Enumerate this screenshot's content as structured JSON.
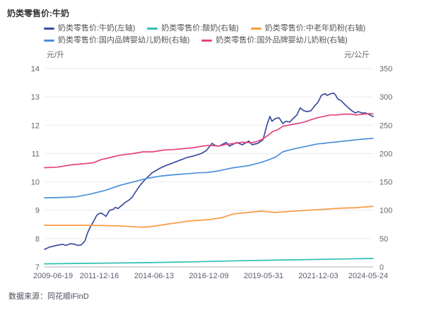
{
  "title": "奶类零售价:牛奶",
  "source": "数据来源：同花顺iFinD",
  "axis_units": {
    "left": "元/升",
    "right": "元/公斤"
  },
  "chart_data": {
    "type": "line",
    "title": "奶类零售价:牛奶",
    "grid": true,
    "legend_position": "top",
    "x_tick_labels": [
      "2009-06-19",
      "2011-12-16",
      "2014-06-13",
      "2016-12-09",
      "2019-05-31",
      "2021-12-03",
      "2024-05-24"
    ],
    "y_left": {
      "label": "元/升",
      "min": 7,
      "max": 14,
      "ticks": [
        7,
        8,
        9,
        10,
        11,
        12,
        13,
        14
      ]
    },
    "y_right": {
      "label": "元/公斤",
      "min": 0,
      "max": 350,
      "ticks": [
        0,
        50,
        100,
        150,
        200,
        250,
        300,
        350
      ]
    },
    "series": [
      {
        "id": "milk",
        "name": "奶类零售价:牛奶(左轴)",
        "axis": "left",
        "color": "#3C4C9D",
        "points": [
          [
            0.0,
            7.62
          ],
          [
            0.015,
            7.7
          ],
          [
            0.037,
            7.76
          ],
          [
            0.054,
            7.8
          ],
          [
            0.065,
            7.76
          ],
          [
            0.08,
            7.82
          ],
          [
            0.092,
            7.8
          ],
          [
            0.101,
            7.76
          ],
          [
            0.112,
            7.78
          ],
          [
            0.123,
            7.92
          ],
          [
            0.131,
            8.2
          ],
          [
            0.138,
            8.38
          ],
          [
            0.148,
            8.58
          ],
          [
            0.159,
            8.82
          ],
          [
            0.166,
            8.88
          ],
          [
            0.172,
            8.9
          ],
          [
            0.181,
            8.84
          ],
          [
            0.187,
            8.78
          ],
          [
            0.194,
            8.92
          ],
          [
            0.198,
            9.0
          ],
          [
            0.209,
            9.03
          ],
          [
            0.215,
            9.1
          ],
          [
            0.224,
            9.06
          ],
          [
            0.23,
            9.12
          ],
          [
            0.238,
            9.2
          ],
          [
            0.245,
            9.27
          ],
          [
            0.258,
            9.37
          ],
          [
            0.266,
            9.45
          ],
          [
            0.273,
            9.57
          ],
          [
            0.284,
            9.77
          ],
          [
            0.295,
            9.94
          ],
          [
            0.305,
            10.07
          ],
          [
            0.316,
            10.19
          ],
          [
            0.327,
            10.32
          ],
          [
            0.338,
            10.39
          ],
          [
            0.353,
            10.49
          ],
          [
            0.37,
            10.58
          ],
          [
            0.391,
            10.67
          ],
          [
            0.413,
            10.77
          ],
          [
            0.434,
            10.86
          ],
          [
            0.456,
            10.92
          ],
          [
            0.477,
            11.0
          ],
          [
            0.492,
            11.1
          ],
          [
            0.51,
            11.36
          ],
          [
            0.52,
            11.28
          ],
          [
            0.531,
            11.26
          ],
          [
            0.553,
            11.39
          ],
          [
            0.563,
            11.26
          ],
          [
            0.585,
            11.39
          ],
          [
            0.602,
            11.31
          ],
          [
            0.622,
            11.44
          ],
          [
            0.632,
            11.31
          ],
          [
            0.649,
            11.36
          ],
          [
            0.665,
            11.49
          ],
          [
            0.677,
            12.01
          ],
          [
            0.686,
            12.31
          ],
          [
            0.692,
            12.14
          ],
          [
            0.703,
            12.24
          ],
          [
            0.714,
            12.26
          ],
          [
            0.725,
            12.06
          ],
          [
            0.735,
            12.14
          ],
          [
            0.746,
            12.11
          ],
          [
            0.757,
            12.24
          ],
          [
            0.768,
            12.36
          ],
          [
            0.778,
            12.61
          ],
          [
            0.789,
            12.51
          ],
          [
            0.8,
            12.48
          ],
          [
            0.811,
            12.51
          ],
          [
            0.822,
            12.68
          ],
          [
            0.832,
            12.81
          ],
          [
            0.843,
            13.06
          ],
          [
            0.854,
            13.11
          ],
          [
            0.86,
            13.05
          ],
          [
            0.871,
            13.11
          ],
          [
            0.88,
            13.13
          ],
          [
            0.886,
            13.06
          ],
          [
            0.892,
            12.93
          ],
          [
            0.903,
            12.86
          ],
          [
            0.914,
            12.73
          ],
          [
            0.925,
            12.61
          ],
          [
            0.935,
            12.51
          ],
          [
            0.946,
            12.43
          ],
          [
            0.955,
            12.48
          ],
          [
            0.966,
            12.43
          ],
          [
            0.977,
            12.43
          ],
          [
            0.987,
            12.38
          ],
          [
            1.0,
            12.3
          ]
        ]
      },
      {
        "id": "yogurt",
        "name": "奶类零售价:酸奶(右轴)",
        "axis": "right",
        "color": "#2FC0B2",
        "points": [
          [
            0.0,
            5.5
          ],
          [
            0.15,
            6.5
          ],
          [
            0.3,
            7.5
          ],
          [
            0.45,
            9.0
          ],
          [
            0.6,
            11.0
          ],
          [
            0.75,
            12.5
          ],
          [
            0.9,
            14.0
          ],
          [
            1.0,
            15.0
          ]
        ]
      },
      {
        "id": "middle-aged-milk-powder",
        "name": "奶类零售价:中老年奶粉(右轴)",
        "axis": "right",
        "color": "#F79B42",
        "points": [
          [
            0.0,
            73.5
          ],
          [
            0.06,
            73.5
          ],
          [
            0.12,
            73.5
          ],
          [
            0.18,
            73.0
          ],
          [
            0.24,
            72.0
          ],
          [
            0.295,
            70.0
          ],
          [
            0.32,
            71.0
          ],
          [
            0.34,
            72.5
          ],
          [
            0.38,
            76.0
          ],
          [
            0.44,
            81.0
          ],
          [
            0.5,
            83.5
          ],
          [
            0.54,
            87.0
          ],
          [
            0.575,
            93.5
          ],
          [
            0.62,
            96.0
          ],
          [
            0.66,
            98.5
          ],
          [
            0.7,
            96.0
          ],
          [
            0.75,
            98.0
          ],
          [
            0.8,
            100.0
          ],
          [
            0.85,
            101.5
          ],
          [
            0.897,
            103.5
          ],
          [
            0.95,
            104.5
          ],
          [
            1.0,
            107.0
          ]
        ]
      },
      {
        "id": "domestic-infant-formula",
        "name": "奶类零售价:国内品牌婴幼儿奶粉(右轴)",
        "axis": "right",
        "color": "#4A8FD9",
        "points": [
          [
            0.0,
            122.0
          ],
          [
            0.05,
            122.5
          ],
          [
            0.095,
            123.5
          ],
          [
            0.14,
            128.5
          ],
          [
            0.185,
            135.0
          ],
          [
            0.23,
            144.0
          ],
          [
            0.27,
            150.0
          ],
          [
            0.31,
            156.0
          ],
          [
            0.35,
            160.0
          ],
          [
            0.385,
            162.0
          ],
          [
            0.425,
            164.0
          ],
          [
            0.47,
            166.0
          ],
          [
            0.495,
            166.5
          ],
          [
            0.53,
            169.5
          ],
          [
            0.57,
            174.5
          ],
          [
            0.62,
            178.5
          ],
          [
            0.66,
            184.5
          ],
          [
            0.68,
            188.5
          ],
          [
            0.703,
            193.5
          ],
          [
            0.725,
            203.0
          ],
          [
            0.75,
            207.0
          ],
          [
            0.77,
            209.5
          ],
          [
            0.79,
            212.0
          ],
          [
            0.81,
            214.5
          ],
          [
            0.83,
            217.0
          ],
          [
            0.85,
            218.0
          ],
          [
            0.87,
            219.5
          ],
          [
            0.89,
            220.5
          ],
          [
            0.91,
            222.0
          ],
          [
            0.93,
            223.0
          ],
          [
            0.95,
            224.5
          ],
          [
            0.97,
            225.5
          ],
          [
            1.0,
            227.0
          ]
        ]
      },
      {
        "id": "foreign-infant-formula",
        "name": "奶类零售价:国外品牌婴幼儿奶粉(右轴)",
        "axis": "right",
        "color": "#E5447F",
        "points": [
          [
            0.0,
            175.0
          ],
          [
            0.04,
            176.0
          ],
          [
            0.08,
            180.0
          ],
          [
            0.12,
            182.0
          ],
          [
            0.15,
            184.0
          ],
          [
            0.17,
            189.0
          ],
          [
            0.2,
            193.0
          ],
          [
            0.23,
            197.0
          ],
          [
            0.27,
            200.0
          ],
          [
            0.3,
            203.0
          ],
          [
            0.33,
            203.0
          ],
          [
            0.36,
            206.0
          ],
          [
            0.39,
            207.0
          ],
          [
            0.42,
            208.5
          ],
          [
            0.45,
            210.0
          ],
          [
            0.48,
            213.0
          ],
          [
            0.5,
            214.5
          ],
          [
            0.53,
            213.0
          ],
          [
            0.55,
            216.0
          ],
          [
            0.58,
            218.0
          ],
          [
            0.6,
            220.0
          ],
          [
            0.63,
            219.0
          ],
          [
            0.65,
            222.0
          ],
          [
            0.665,
            226.0
          ],
          [
            0.68,
            232.0
          ],
          [
            0.695,
            239.0
          ],
          [
            0.71,
            242.0
          ],
          [
            0.725,
            248.0
          ],
          [
            0.745,
            250.5
          ],
          [
            0.77,
            253.0
          ],
          [
            0.79,
            255.5
          ],
          [
            0.81,
            259.5
          ],
          [
            0.83,
            263.0
          ],
          [
            0.85,
            265.5
          ],
          [
            0.87,
            268.0
          ],
          [
            0.89,
            268.0
          ],
          [
            0.91,
            269.5
          ],
          [
            0.93,
            269.5
          ],
          [
            0.95,
            268.0
          ],
          [
            0.97,
            269.5
          ],
          [
            0.99,
            270.5
          ],
          [
            1.0,
            269.5
          ]
        ]
      }
    ]
  }
}
